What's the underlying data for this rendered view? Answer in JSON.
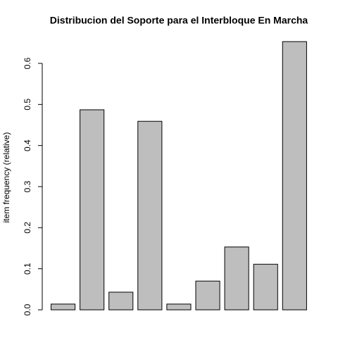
{
  "chart_data": {
    "type": "bar",
    "title": "Distribucion del Soporte para el Interbloque En Marcha",
    "y_label": "item frequency (relative)",
    "categories": [
      null,
      null,
      null,
      null,
      null,
      null,
      null,
      null,
      null
    ],
    "values": [
      0.014,
      0.487,
      0.043,
      0.459,
      0.014,
      0.07,
      0.153,
      0.111,
      0.653
    ],
    "color": "#bebebe",
    "ylim": [
      0,
      0.66
    ],
    "yticks": [
      {
        "value": 0,
        "label": "0.0"
      },
      0.1,
      0.2,
      0.3,
      0.4,
      0.5,
      0.6
    ],
    "grid": false
  }
}
